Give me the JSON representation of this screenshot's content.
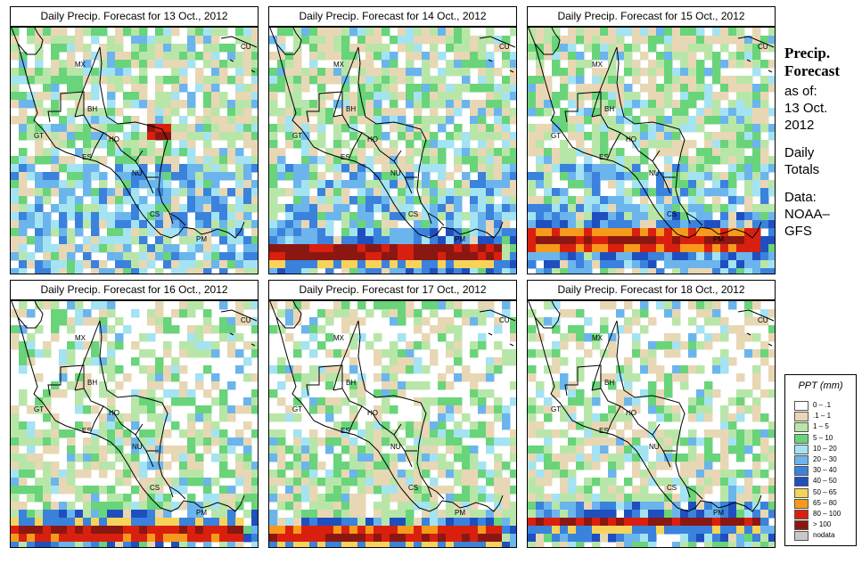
{
  "panels": [
    {
      "title": "Daily Precip. Forecast for  13 Oct., 2012"
    },
    {
      "title": "Daily Precip. Forecast for  14 Oct., 2012"
    },
    {
      "title": "Daily Precip. Forecast for  15 Oct., 2012"
    },
    {
      "title": "Daily Precip. Forecast for  16 Oct., 2012"
    },
    {
      "title": "Daily Precip. Forecast for  17 Oct., 2012"
    },
    {
      "title": "Daily Precip. Forecast for  18 Oct., 2012"
    }
  ],
  "country_labels": [
    "MX",
    "BH",
    "GT",
    "HO",
    "ES",
    "NU",
    "CS",
    "PM",
    "CU"
  ],
  "sidebar": {
    "title_line1": "Precip.",
    "title_line2": "Forecast",
    "asof_line1": "as of:",
    "asof_line2": "13 Oct.",
    "asof_line3": "2012",
    "totals_line1": "Daily",
    "totals_line2": "Totals",
    "source_line1": "Data:",
    "source_line2": "NOAA–",
    "source_line3": "GFS"
  },
  "legend": {
    "title": "PPT (mm)",
    "items": [
      {
        "label": "0 – .1",
        "color": "#ffffff"
      },
      {
        "label": ".1 – 1",
        "color": "#e8d7b4"
      },
      {
        "label": "1 – 5",
        "color": "#b8e6a8"
      },
      {
        "label": "5 – 10",
        "color": "#69d47a"
      },
      {
        "label": "10 – 20",
        "color": "#a4e3f2"
      },
      {
        "label": "20 – 30",
        "color": "#6bb5ec"
      },
      {
        "label": "30 – 40",
        "color": "#3a82dc"
      },
      {
        "label": "40 – 50",
        "color": "#1f4fbf"
      },
      {
        "label": "50 – 65",
        "color": "#f6d35a"
      },
      {
        "label": "65 – 80",
        "color": "#f79a1c"
      },
      {
        "label": "80 – 100",
        "color": "#d9200f"
      },
      {
        "label": "> 100",
        "color": "#8b1712"
      },
      {
        "label": "nodata",
        "color": "#c8c8c8"
      }
    ]
  }
}
